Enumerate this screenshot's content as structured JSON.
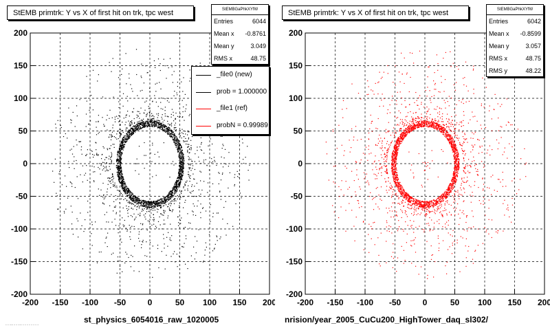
{
  "chart_data": [
    {
      "type": "scatter",
      "title": "StEMB primtrk: Y vs X of first hit on trk, tpc west",
      "xlabel": "st_physics_6054016_raw_1020005",
      "ylabel": "",
      "xlim": [
        -200,
        200
      ],
      "ylim": [
        -200,
        200
      ],
      "xticks": [
        -200,
        -150,
        -100,
        -50,
        0,
        50,
        100,
        150,
        200
      ],
      "yticks": [
        -200,
        -150,
        -100,
        -50,
        0,
        50,
        100,
        150,
        200
      ],
      "grid": true,
      "marker_color": "#000000",
      "distribution": {
        "ring_radius": 60,
        "ring_width": 10,
        "entries": 6044
      },
      "stats": {
        "header": "StEMBGaPhkXYfW",
        "rows": [
          {
            "label": "Entries",
            "value": "6044"
          },
          {
            "label": "Mean x",
            "value": "-0.8761"
          },
          {
            "label": "Mean y",
            "value": "3.049"
          },
          {
            "label": "RMS x",
            "value": "48.75"
          }
        ]
      },
      "legend": {
        "placement": "top-right",
        "entries": [
          {
            "label": "_file0 (new)",
            "color": "#000000"
          },
          {
            "label": "prob = 1.000000",
            "color": "#000000"
          },
          {
            "label": "_file1 (ref)",
            "color": "#ff0000"
          },
          {
            "label": "probN = 0.99989",
            "color": "#ff0000"
          }
        ]
      }
    },
    {
      "type": "scatter",
      "title": "StEMB primtrk: Y vs X of first hit on trk, tpc west",
      "xlabel": "nrision/year_2005_CuCu200_HighTower_daq_sl302/",
      "ylabel": "",
      "xlim": [
        -200,
        200
      ],
      "ylim": [
        -200,
        200
      ],
      "xticks": [
        -200,
        -150,
        -100,
        -50,
        0,
        50,
        100,
        150,
        200
      ],
      "yticks": [
        -200,
        -150,
        -100,
        -50,
        0,
        50,
        100,
        150,
        200
      ],
      "grid": true,
      "marker_color": "#ff0000",
      "distribution": {
        "ring_radius": 60,
        "ring_width": 10,
        "entries": 6042
      },
      "stats": {
        "header": "StEMBGaPhkXYfW",
        "rows": [
          {
            "label": "Entries",
            "value": "6042"
          },
          {
            "label": "Mean x",
            "value": "-0.8599"
          },
          {
            "label": "Mean y",
            "value": "3.057"
          },
          {
            "label": "RMS x",
            "value": "48.75"
          },
          {
            "label": "RMS y",
            "value": "48.22"
          }
        ]
      }
    }
  ],
  "footer": "- - -·- - - -·- - - - - - - - -"
}
